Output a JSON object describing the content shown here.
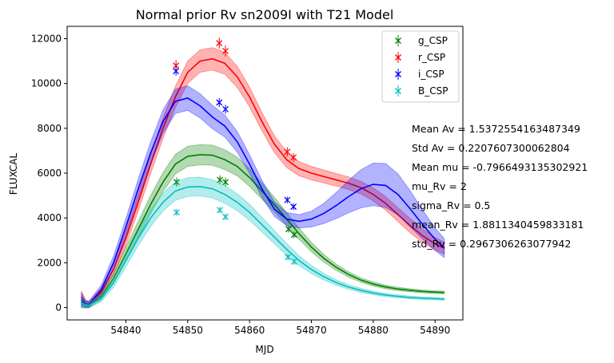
{
  "chart_data": {
    "type": "line",
    "title": "Normal prior Rv sn2009I with T21 Model",
    "xlabel": "MJD",
    "ylabel": "FLUXCAL",
    "xlim": [
      54830.5,
      54894.5
    ],
    "ylim": [
      -550,
      12550
    ],
    "xticks": [
      54830,
      54840,
      54850,
      54860,
      54870,
      54880,
      54890
    ],
    "yticks": [
      0,
      2000,
      4000,
      6000,
      8000,
      10000,
      12000
    ],
    "legend_position": "top-right",
    "series": [
      {
        "name": "g_CSP",
        "color": "#008000",
        "model": [
          [
            54832.8,
            250
          ],
          [
            54833.5,
            140
          ],
          [
            54834,
            120
          ],
          [
            54836,
            500
          ],
          [
            54838,
            1300
          ],
          [
            54840,
            2400
          ],
          [
            54842,
            3500
          ],
          [
            54844,
            4600
          ],
          [
            54846,
            5600
          ],
          [
            54848,
            6400
          ],
          [
            54850,
            6750
          ],
          [
            54852,
            6820
          ],
          [
            54854,
            6800
          ],
          [
            54856,
            6600
          ],
          [
            54858,
            6300
          ],
          [
            54860,
            5800
          ],
          [
            54862,
            5200
          ],
          [
            54864,
            4600
          ],
          [
            54866,
            3950
          ],
          [
            54868,
            3300
          ],
          [
            54870,
            2700
          ],
          [
            54872,
            2200
          ],
          [
            54874,
            1800
          ],
          [
            54876,
            1480
          ],
          [
            54878,
            1230
          ],
          [
            54880,
            1050
          ],
          [
            54882,
            920
          ],
          [
            54884,
            830
          ],
          [
            54886,
            770
          ],
          [
            54888,
            720
          ],
          [
            54890,
            690
          ],
          [
            54891.5,
            670
          ]
        ],
        "band": [
          250,
          150,
          130,
          150,
          220,
          300,
          360,
          400,
          430,
          440,
          450,
          450,
          450,
          440,
          420,
          390,
          360,
          330,
          290,
          250,
          210,
          170,
          140,
          120,
          100,
          90,
          80,
          75,
          70,
          65,
          60,
          60
        ],
        "points": [
          [
            54848.2,
            5600
          ],
          [
            54855.2,
            5700
          ],
          [
            54856.1,
            5600
          ],
          [
            54866.3,
            3500
          ],
          [
            54867.2,
            3250
          ]
        ],
        "errors": [
          200,
          200,
          200,
          150,
          150
        ]
      },
      {
        "name": "r_CSP",
        "color": "#ff0000",
        "model": [
          [
            54832.8,
            450
          ],
          [
            54833.5,
            180
          ],
          [
            54834,
            150
          ],
          [
            54836,
            700
          ],
          [
            54838,
            1700
          ],
          [
            54840,
            3100
          ],
          [
            54842,
            4700
          ],
          [
            54844,
            6400
          ],
          [
            54846,
            8000
          ],
          [
            54848,
            9400
          ],
          [
            54850,
            10500
          ],
          [
            54852,
            11000
          ],
          [
            54854,
            11100
          ],
          [
            54856,
            10900
          ],
          [
            54858,
            10300
          ],
          [
            54860,
            9400
          ],
          [
            54862,
            8300
          ],
          [
            54864,
            7300
          ],
          [
            54866,
            6600
          ],
          [
            54868,
            6200
          ],
          [
            54870,
            6000
          ],
          [
            54872,
            5850
          ],
          [
            54874,
            5700
          ],
          [
            54876,
            5550
          ],
          [
            54878,
            5350
          ],
          [
            54880,
            5050
          ],
          [
            54882,
            4650
          ],
          [
            54884,
            4150
          ],
          [
            54886,
            3650
          ],
          [
            54888,
            3200
          ],
          [
            54890,
            2850
          ],
          [
            54891.5,
            2650
          ]
        ],
        "band": [
          300,
          150,
          130,
          170,
          240,
          320,
          390,
          430,
          460,
          480,
          500,
          500,
          500,
          490,
          470,
          440,
          410,
          380,
          350,
          320,
          300,
          290,
          280,
          280,
          280,
          290,
          300,
          310,
          320,
          300,
          280,
          260
        ],
        "points": [
          [
            54848.1,
            10800
          ],
          [
            54855.1,
            11800
          ],
          [
            54856.1,
            11450
          ],
          [
            54866.1,
            6950
          ],
          [
            54867.1,
            6700
          ]
        ],
        "errors": [
          250,
          250,
          250,
          200,
          200
        ]
      },
      {
        "name": "i_CSP",
        "color": "#0000ff",
        "model": [
          [
            54832.8,
            350
          ],
          [
            54833.5,
            160
          ],
          [
            54834,
            140
          ],
          [
            54836,
            800
          ],
          [
            54838,
            2000
          ],
          [
            54840,
            3600
          ],
          [
            54842,
            5300
          ],
          [
            54844,
            6900
          ],
          [
            54846,
            8300
          ],
          [
            54848,
            9200
          ],
          [
            54850,
            9350
          ],
          [
            54852,
            9000
          ],
          [
            54854,
            8500
          ],
          [
            54856,
            8100
          ],
          [
            54858,
            7400
          ],
          [
            54860,
            6400
          ],
          [
            54862,
            5300
          ],
          [
            54864,
            4400
          ],
          [
            54866,
            3950
          ],
          [
            54868,
            3850
          ],
          [
            54870,
            3950
          ],
          [
            54872,
            4200
          ],
          [
            54874,
            4550
          ],
          [
            54876,
            4950
          ],
          [
            54878,
            5300
          ],
          [
            54880,
            5500
          ],
          [
            54882,
            5450
          ],
          [
            54884,
            5050
          ],
          [
            54886,
            4400
          ],
          [
            54888,
            3700
          ],
          [
            54890,
            3050
          ],
          [
            54891.5,
            2650
          ]
        ],
        "band": [
          300,
          150,
          130,
          200,
          300,
          380,
          440,
          490,
          520,
          540,
          550,
          540,
          520,
          490,
          460,
          420,
          380,
          330,
          290,
          300,
          350,
          450,
          580,
          720,
          850,
          950,
          980,
          920,
          800,
          650,
          500,
          420
        ],
        "points": [
          [
            54848.1,
            10550
          ],
          [
            54855.1,
            9150
          ],
          [
            54856.1,
            8850
          ],
          [
            54866.1,
            4800
          ],
          [
            54867.1,
            4500
          ]
        ],
        "errors": [
          200,
          200,
          200,
          150,
          150
        ]
      },
      {
        "name": "B_CSP",
        "color": "#00bfbf",
        "model": [
          [
            54832.8,
            200
          ],
          [
            54833.5,
            120
          ],
          [
            54834,
            100
          ],
          [
            54836,
            400
          ],
          [
            54838,
            1100
          ],
          [
            54840,
            2100
          ],
          [
            54842,
            3100
          ],
          [
            54844,
            4000
          ],
          [
            54846,
            4700
          ],
          [
            54848,
            5200
          ],
          [
            54850,
            5380
          ],
          [
            54852,
            5400
          ],
          [
            54854,
            5300
          ],
          [
            54856,
            5050
          ],
          [
            54858,
            4700
          ],
          [
            54860,
            4250
          ],
          [
            54862,
            3700
          ],
          [
            54864,
            3150
          ],
          [
            54866,
            2600
          ],
          [
            54868,
            2100
          ],
          [
            54870,
            1700
          ],
          [
            54872,
            1380
          ],
          [
            54874,
            1120
          ],
          [
            54876,
            920
          ],
          [
            54878,
            770
          ],
          [
            54880,
            650
          ],
          [
            54882,
            560
          ],
          [
            54884,
            500
          ],
          [
            54886,
            450
          ],
          [
            54888,
            420
          ],
          [
            54890,
            400
          ],
          [
            54891.5,
            380
          ]
        ],
        "band": [
          220,
          140,
          120,
          140,
          200,
          280,
          340,
          380,
          400,
          410,
          420,
          420,
          410,
          400,
          380,
          360,
          330,
          300,
          260,
          220,
          180,
          150,
          120,
          100,
          90,
          80,
          70,
          65,
          60,
          55,
          55,
          50
        ],
        "points": [
          [
            54848.2,
            4250
          ],
          [
            54855.2,
            4350
          ],
          [
            54856.1,
            4050
          ],
          [
            54866.2,
            2250
          ],
          [
            54867.2,
            2050
          ]
        ],
        "errors": [
          150,
          150,
          150,
          150,
          150
        ]
      }
    ],
    "annotations": [
      "Mean Av = 1.5372554163487349",
      "Std Av = 0.2207607300062804",
      "Mean mu = -0.7966493135302921",
      "mu_Rv = 2",
      "sigma_Rv = 0.5",
      "mean_Rv = 1.8811340459833181",
      "std_Rv = 0.2967306263077942"
    ]
  }
}
